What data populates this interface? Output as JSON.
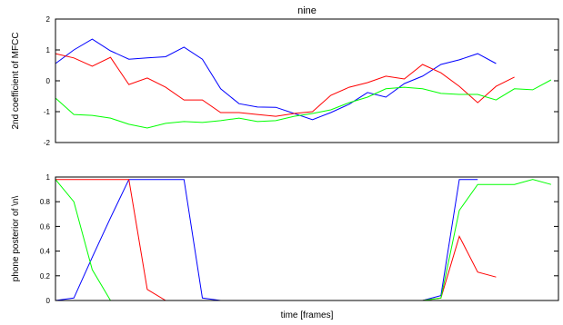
{
  "chart_data": [
    {
      "type": "line",
      "title": "nine",
      "ylabel": "2nd coefficient of MFCC",
      "x": [
        1,
        2,
        3,
        4,
        5,
        6,
        7,
        8,
        9,
        10,
        11,
        12,
        13,
        14,
        15,
        16,
        17,
        18,
        19,
        20,
        21,
        22,
        23,
        24,
        25,
        26,
        27,
        28
      ],
      "xlim": [
        1,
        28.4
      ],
      "ylim": [
        -2,
        2
      ],
      "yticks": [
        -2,
        -1,
        0,
        1,
        2
      ],
      "grid": false,
      "series": [
        {
          "color": "#0000ff",
          "values": [
            0.56,
            1.0,
            1.35,
            0.97,
            0.7,
            0.74,
            0.78,
            1.09,
            0.7,
            -0.26,
            -0.74,
            -0.85,
            -0.86,
            -1.06,
            -1.26,
            -1.03,
            -0.76,
            -0.38,
            -0.53,
            -0.09,
            0.15,
            0.53,
            0.68,
            0.88,
            0.56,
            null,
            null,
            null
          ]
        },
        {
          "color": "#ff0000",
          "values": [
            0.88,
            0.74,
            0.47,
            0.76,
            -0.12,
            0.09,
            -0.21,
            -0.62,
            -0.62,
            -1.03,
            -1.03,
            -1.09,
            -1.15,
            -1.06,
            -1.0,
            -0.47,
            -0.21,
            -0.06,
            0.15,
            0.06,
            0.53,
            0.26,
            -0.18,
            -0.71,
            -0.18,
            0.12,
            null,
            null
          ]
        },
        {
          "color": "#00ff00",
          "values": [
            -0.56,
            -1.09,
            -1.12,
            -1.21,
            -1.41,
            -1.53,
            -1.38,
            -1.32,
            -1.35,
            -1.29,
            -1.21,
            -1.32,
            -1.29,
            -1.15,
            -1.06,
            -0.94,
            -0.71,
            -0.53,
            -0.26,
            -0.21,
            -0.26,
            -0.41,
            -0.44,
            -0.44,
            -0.62,
            -0.26,
            -0.29,
            0.03
          ]
        }
      ]
    },
    {
      "type": "line",
      "ylabel": "phone posterior of \\n\\",
      "xlabel": "time [frames]",
      "x": [
        1,
        2,
        3,
        4,
        5,
        6,
        7,
        8,
        9,
        10,
        11,
        12,
        13,
        14,
        15,
        16,
        17,
        18,
        19,
        20,
        21,
        22,
        23,
        24,
        25,
        26,
        27,
        28
      ],
      "xlim": [
        1,
        28.4
      ],
      "ylim": [
        0,
        1
      ],
      "yticks": [
        0,
        0.2,
        0.4,
        0.6,
        0.8,
        1
      ],
      "grid": false,
      "series": [
        {
          "color": "#0000ff",
          "values": [
            0,
            0.02,
            0.35,
            0.67,
            0.98,
            0.98,
            0.98,
            0.98,
            0.02,
            0,
            0,
            0,
            0,
            0,
            0,
            0,
            0,
            0,
            0,
            0,
            0,
            0.04,
            0.98,
            0.98,
            null,
            null,
            null,
            null
          ]
        },
        {
          "color": "#ff0000",
          "values": [
            0.98,
            0.98,
            0.98,
            0.98,
            0.98,
            0.09,
            0,
            0,
            0,
            0,
            0,
            0,
            0,
            0,
            0,
            0,
            0,
            0,
            0,
            0,
            0,
            0.02,
            0.52,
            0.23,
            0.19,
            null,
            null,
            null
          ]
        },
        {
          "color": "#00ff00",
          "values": [
            0.98,
            0.8,
            0.25,
            0,
            0,
            0,
            0,
            0,
            0,
            0,
            0,
            0,
            0,
            0,
            0,
            0,
            0,
            0,
            0,
            0,
            0,
            0.02,
            0.73,
            0.94,
            0.94,
            0.94,
            0.98,
            0.94
          ]
        }
      ]
    }
  ]
}
